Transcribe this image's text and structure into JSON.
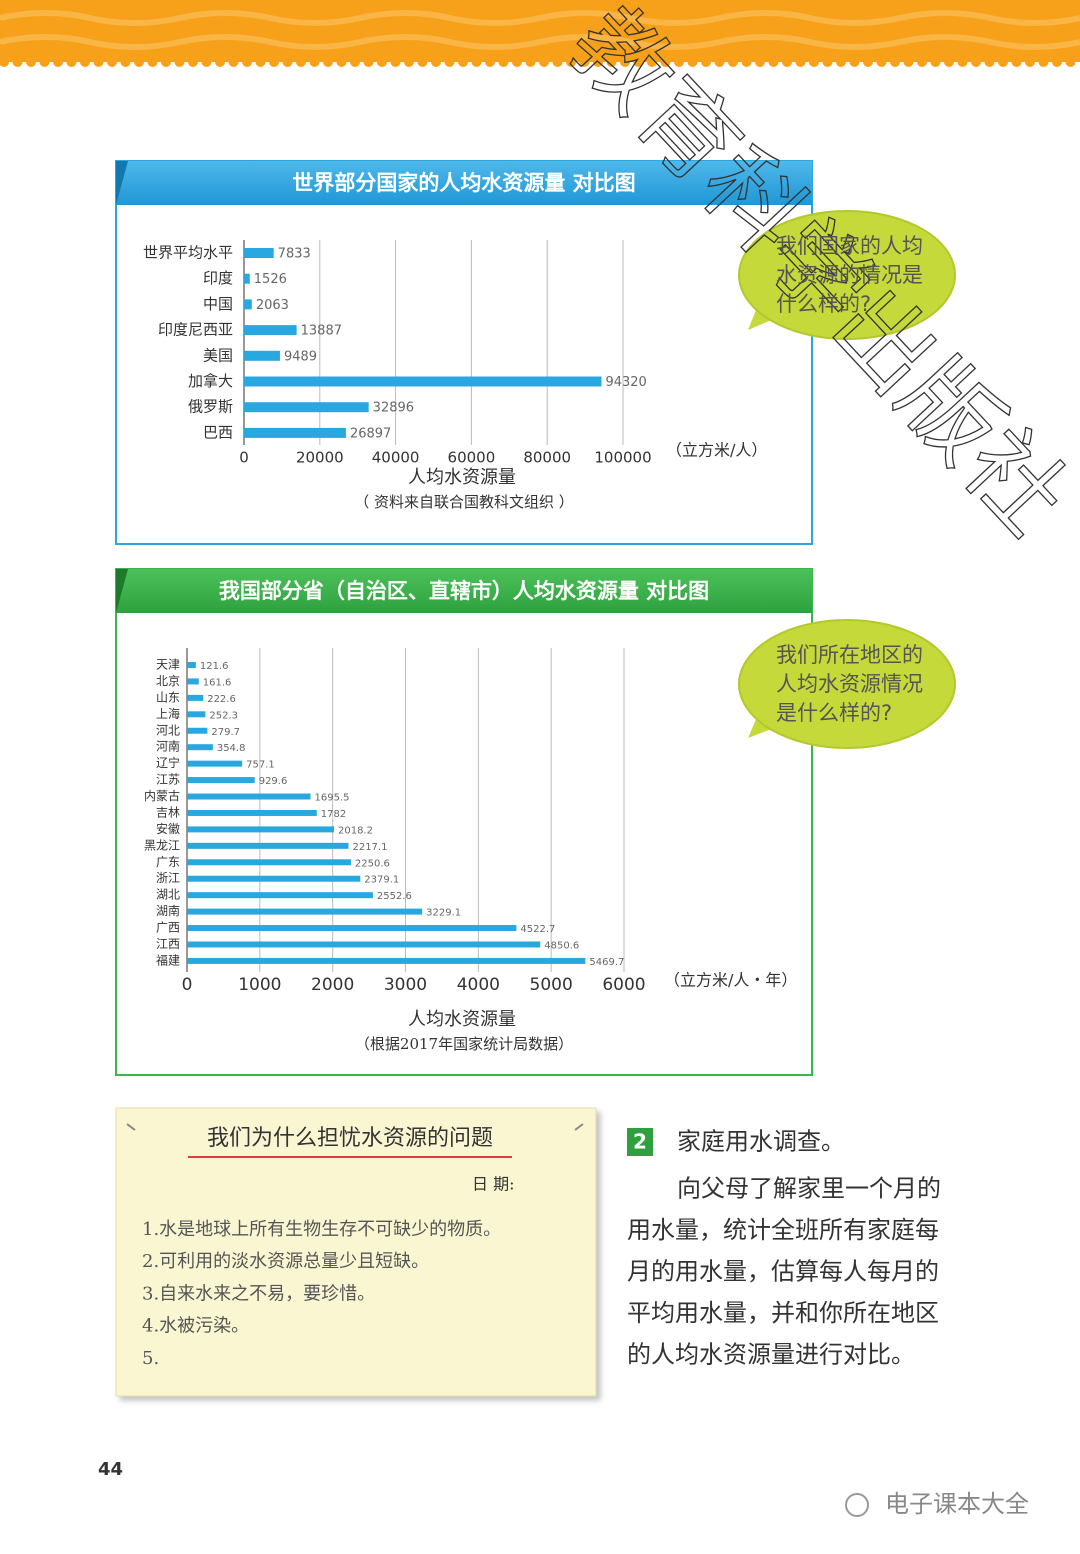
{
  "chart_data": [
    {
      "type": "bar",
      "orientation": "horizontal",
      "title": "世界部分国家的人均水资源量 对比图",
      "categories": [
        "世界平均水平",
        "印度",
        "中国",
        "印度尼西亚",
        "美国",
        "加拿大",
        "俄罗斯",
        "巴西"
      ],
      "values": [
        7833,
        1526,
        2063,
        13887,
        9489,
        94320,
        32896,
        26897
      ],
      "color": "#29a8e0",
      "xlim": [
        0,
        100000
      ],
      "xticks": [
        0,
        20000,
        40000,
        60000,
        80000,
        100000
      ],
      "grid": true,
      "x_label": "人均水资源量",
      "unit": "（立方米/人）",
      "source": "（ 资料来自联合国教科文组织 ）"
    },
    {
      "type": "bar",
      "orientation": "horizontal",
      "title": "我国部分省（自治区、直辖市）人均水资源量 对比图",
      "categories": [
        "天津",
        "北京",
        "山东",
        "上海",
        "河北",
        "河南",
        "辽宁",
        "江苏",
        "内蒙古",
        "吉林",
        "安徽",
        "黑龙江",
        "广东",
        "浙江",
        "湖北",
        "湖南",
        "广西",
        "江西",
        "福建"
      ],
      "values": [
        121.6,
        161.6,
        222.6,
        252.3,
        279.7,
        354.8,
        757.1,
        929.6,
        1695.5,
        1782,
        2018.2,
        2217.1,
        2250.6,
        2379.1,
        2552.6,
        3229.1,
        4522.7,
        4850.6,
        5469.7
      ],
      "color": "#29a8e0",
      "xlim": [
        0,
        6000
      ],
      "xticks": [
        0,
        1000,
        2000,
        3000,
        4000,
        5000,
        6000
      ],
      "grid": true,
      "x_label": "人均水资源量",
      "unit": "（立方米/人・年）",
      "source": "（根据2017年国家统计局数据）"
    }
  ],
  "bubbles": [
    {
      "lines": [
        "我们国家的人均",
        "水资源的情况是",
        "什么样的?"
      ]
    },
    {
      "lines": [
        "我们所在地区的",
        "人均水资源情况",
        "是什么样的?"
      ]
    }
  ],
  "note": {
    "title": "我们为什么担忧水资源的问题",
    "date_label": "日 期:",
    "items": [
      "1.水是地球上所有生物生存不可缺少的物质。",
      "2.可利用的淡水资源总量少且短缺。",
      "3.自来水来之不易，要珍惜。",
      "4.水被污染。",
      "5."
    ]
  },
  "task": {
    "number": "2",
    "title": "家庭用水调查。",
    "body": [
      "向父母了解家里一个月的",
      "用水量，统计全班所有家庭每",
      "月的用水量，估算每人每月的",
      "平均用水量，并和你所在地区",
      "的人均水资源量进行对比。"
    ]
  },
  "page_number": "44",
  "watermark": "教育科学出版社",
  "footer_brand": "电子课本大全"
}
